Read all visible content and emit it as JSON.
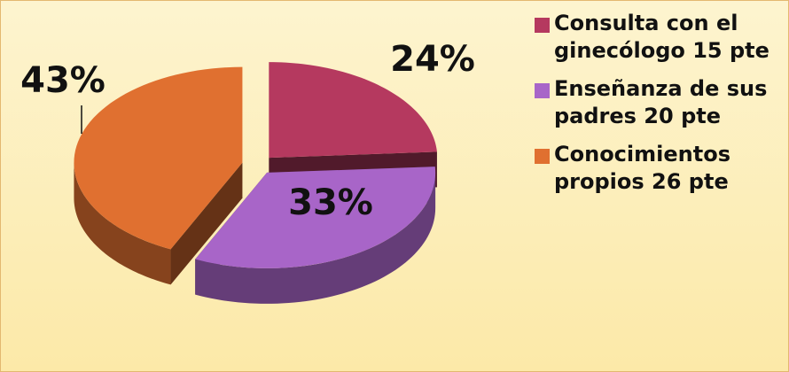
{
  "chart_data": {
    "type": "pie",
    "categories": [
      "Consulta con el ginecólogo 15 pte",
      "Enseñanza de sus padres 20 pte",
      "Conocimientos propios  26 pte"
    ],
    "values": [
      24,
      33,
      43
    ],
    "value_labels": [
      "24%",
      "33%",
      "43%"
    ],
    "colors": [
      "#b5395f",
      "#a865c8",
      "#e07030"
    ],
    "legend": "right"
  }
}
